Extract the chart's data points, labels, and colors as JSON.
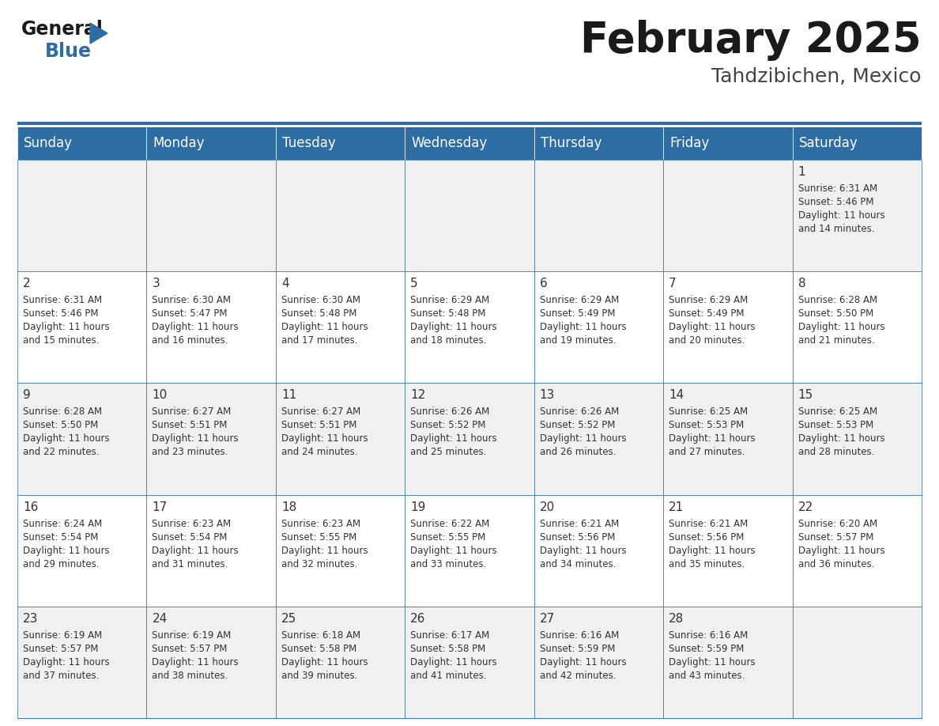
{
  "title": "February 2025",
  "subtitle": "Tahdzibichen, Mexico",
  "days_of_week": [
    "Sunday",
    "Monday",
    "Tuesday",
    "Wednesday",
    "Thursday",
    "Friday",
    "Saturday"
  ],
  "header_bg": "#2E6DA4",
  "header_text": "#FFFFFF",
  "cell_bg_light": "#F0F0F0",
  "cell_bg_white": "#FFFFFF",
  "text_color": "#333333",
  "border_color": "#2E6DA4",
  "logo_general_color": "#1a1a1a",
  "logo_blue_color": "#2E6DA4",
  "logo_triangle_color": "#2E6DA4",
  "title_color": "#1a1a1a",
  "subtitle_color": "#444444",
  "weeks": [
    [
      {
        "day": null
      },
      {
        "day": null
      },
      {
        "day": null
      },
      {
        "day": null
      },
      {
        "day": null
      },
      {
        "day": null
      },
      {
        "day": 1,
        "sunrise": "6:31 AM",
        "sunset": "5:46 PM",
        "daylight": "11 hours and 14 minutes."
      }
    ],
    [
      {
        "day": 2,
        "sunrise": "6:31 AM",
        "sunset": "5:46 PM",
        "daylight": "11 hours and 15 minutes."
      },
      {
        "day": 3,
        "sunrise": "6:30 AM",
        "sunset": "5:47 PM",
        "daylight": "11 hours and 16 minutes."
      },
      {
        "day": 4,
        "sunrise": "6:30 AM",
        "sunset": "5:48 PM",
        "daylight": "11 hours and 17 minutes."
      },
      {
        "day": 5,
        "sunrise": "6:29 AM",
        "sunset": "5:48 PM",
        "daylight": "11 hours and 18 minutes."
      },
      {
        "day": 6,
        "sunrise": "6:29 AM",
        "sunset": "5:49 PM",
        "daylight": "11 hours and 19 minutes."
      },
      {
        "day": 7,
        "sunrise": "6:29 AM",
        "sunset": "5:49 PM",
        "daylight": "11 hours and 20 minutes."
      },
      {
        "day": 8,
        "sunrise": "6:28 AM",
        "sunset": "5:50 PM",
        "daylight": "11 hours and 21 minutes."
      }
    ],
    [
      {
        "day": 9,
        "sunrise": "6:28 AM",
        "sunset": "5:50 PM",
        "daylight": "11 hours and 22 minutes."
      },
      {
        "day": 10,
        "sunrise": "6:27 AM",
        "sunset": "5:51 PM",
        "daylight": "11 hours and 23 minutes."
      },
      {
        "day": 11,
        "sunrise": "6:27 AM",
        "sunset": "5:51 PM",
        "daylight": "11 hours and 24 minutes."
      },
      {
        "day": 12,
        "sunrise": "6:26 AM",
        "sunset": "5:52 PM",
        "daylight": "11 hours and 25 minutes."
      },
      {
        "day": 13,
        "sunrise": "6:26 AM",
        "sunset": "5:52 PM",
        "daylight": "11 hours and 26 minutes."
      },
      {
        "day": 14,
        "sunrise": "6:25 AM",
        "sunset": "5:53 PM",
        "daylight": "11 hours and 27 minutes."
      },
      {
        "day": 15,
        "sunrise": "6:25 AM",
        "sunset": "5:53 PM",
        "daylight": "11 hours and 28 minutes."
      }
    ],
    [
      {
        "day": 16,
        "sunrise": "6:24 AM",
        "sunset": "5:54 PM",
        "daylight": "11 hours and 29 minutes."
      },
      {
        "day": 17,
        "sunrise": "6:23 AM",
        "sunset": "5:54 PM",
        "daylight": "11 hours and 31 minutes."
      },
      {
        "day": 18,
        "sunrise": "6:23 AM",
        "sunset": "5:55 PM",
        "daylight": "11 hours and 32 minutes."
      },
      {
        "day": 19,
        "sunrise": "6:22 AM",
        "sunset": "5:55 PM",
        "daylight": "11 hours and 33 minutes."
      },
      {
        "day": 20,
        "sunrise": "6:21 AM",
        "sunset": "5:56 PM",
        "daylight": "11 hours and 34 minutes."
      },
      {
        "day": 21,
        "sunrise": "6:21 AM",
        "sunset": "5:56 PM",
        "daylight": "11 hours and 35 minutes."
      },
      {
        "day": 22,
        "sunrise": "6:20 AM",
        "sunset": "5:57 PM",
        "daylight": "11 hours and 36 minutes."
      }
    ],
    [
      {
        "day": 23,
        "sunrise": "6:19 AM",
        "sunset": "5:57 PM",
        "daylight": "11 hours and 37 minutes."
      },
      {
        "day": 24,
        "sunrise": "6:19 AM",
        "sunset": "5:57 PM",
        "daylight": "11 hours and 38 minutes."
      },
      {
        "day": 25,
        "sunrise": "6:18 AM",
        "sunset": "5:58 PM",
        "daylight": "11 hours and 39 minutes."
      },
      {
        "day": 26,
        "sunrise": "6:17 AM",
        "sunset": "5:58 PM",
        "daylight": "11 hours and 41 minutes."
      },
      {
        "day": 27,
        "sunrise": "6:16 AM",
        "sunset": "5:59 PM",
        "daylight": "11 hours and 42 minutes."
      },
      {
        "day": 28,
        "sunrise": "6:16 AM",
        "sunset": "5:59 PM",
        "daylight": "11 hours and 43 minutes."
      },
      {
        "day": null
      }
    ]
  ]
}
